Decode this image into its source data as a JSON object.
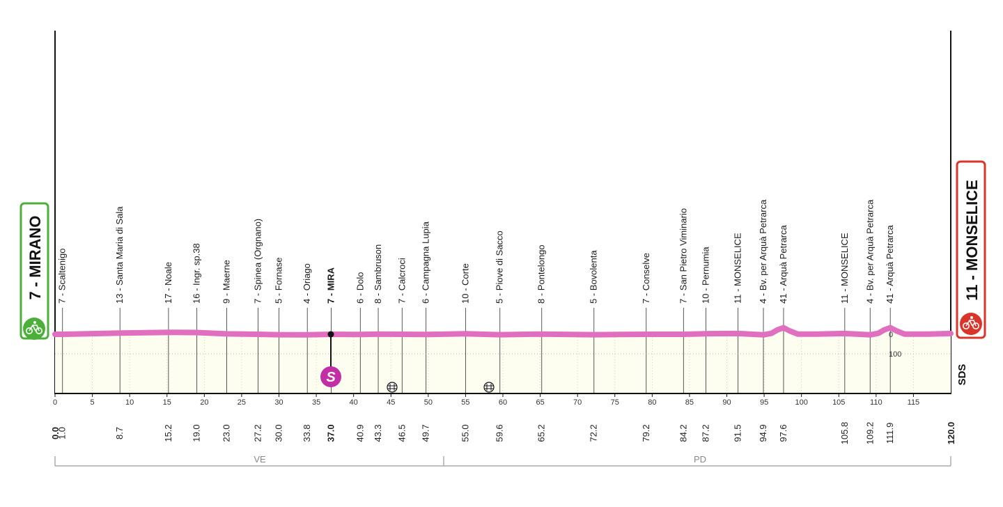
{
  "chart_data": {
    "type": "area",
    "title": "",
    "xlabel": "",
    "ylabel": "",
    "xlim": [
      0,
      120
    ],
    "ylim": [
      0,
      150
    ],
    "x_ticks": [
      0,
      5,
      10,
      15,
      20,
      25,
      30,
      35,
      40,
      45,
      50,
      55,
      60,
      65,
      70,
      75,
      80,
      85,
      90,
      95,
      100,
      105,
      110,
      115
    ],
    "y_ticks": [
      0,
      100
    ],
    "colors": {
      "profile_line": "#e06fc0",
      "area_fill": "#fdfdf0",
      "start": "#4caf3a",
      "finish": "#d9352b",
      "sprint": "#c12ea6"
    },
    "start": {
      "label": "7 - MIRANO",
      "km": "0.0",
      "icon": "bicycle-icon"
    },
    "finish": {
      "label": "11 - MONSELICE",
      "km": "120.0",
      "icon": "bicycle-icon"
    },
    "profile": [
      {
        "km": 0,
        "alt": 7
      },
      {
        "km": 1.0,
        "alt": 7
      },
      {
        "km": 8.7,
        "alt": 13
      },
      {
        "km": 15.2,
        "alt": 17
      },
      {
        "km": 19.0,
        "alt": 16
      },
      {
        "km": 23.0,
        "alt": 9
      },
      {
        "km": 27.2,
        "alt": 7
      },
      {
        "km": 30.0,
        "alt": 5
      },
      {
        "km": 33.8,
        "alt": 4
      },
      {
        "km": 37.0,
        "alt": 7
      },
      {
        "km": 40.9,
        "alt": 6
      },
      {
        "km": 43.3,
        "alt": 8
      },
      {
        "km": 46.5,
        "alt": 7
      },
      {
        "km": 49.7,
        "alt": 6
      },
      {
        "km": 55.0,
        "alt": 10
      },
      {
        "km": 59.6,
        "alt": 5
      },
      {
        "km": 65.2,
        "alt": 8
      },
      {
        "km": 72.2,
        "alt": 5
      },
      {
        "km": 79.2,
        "alt": 7
      },
      {
        "km": 84.2,
        "alt": 7
      },
      {
        "km": 87.2,
        "alt": 10
      },
      {
        "km": 91.5,
        "alt": 11
      },
      {
        "km": 94.9,
        "alt": 4
      },
      {
        "km": 96.0,
        "alt": 12
      },
      {
        "km": 96.8,
        "alt": 30
      },
      {
        "km": 97.6,
        "alt": 41
      },
      {
        "km": 98.4,
        "alt": 25
      },
      {
        "km": 99.5,
        "alt": 8
      },
      {
        "km": 102,
        "alt": 8
      },
      {
        "km": 105.8,
        "alt": 11
      },
      {
        "km": 109.2,
        "alt": 4
      },
      {
        "km": 110.3,
        "alt": 12
      },
      {
        "km": 111.1,
        "alt": 30
      },
      {
        "km": 111.9,
        "alt": 41
      },
      {
        "km": 112.7,
        "alt": 25
      },
      {
        "km": 113.8,
        "alt": 8
      },
      {
        "km": 117,
        "alt": 8
      },
      {
        "km": 120,
        "alt": 11
      }
    ],
    "waypoints": [
      {
        "km": 1.0,
        "km_label": "1.0",
        "name": "7 - Scaltenigo"
      },
      {
        "km": 8.7,
        "km_label": "8.7",
        "name": "13 - Santa Maria di Sala"
      },
      {
        "km": 15.2,
        "km_label": "15.2",
        "name": "17 - Noale"
      },
      {
        "km": 19.0,
        "km_label": "19.0",
        "name": "16 - Ingr. sp.38"
      },
      {
        "km": 23.0,
        "km_label": "23.0",
        "name": "9 - Maerne"
      },
      {
        "km": 27.2,
        "km_label": "27.2",
        "name": "7 - Spinea (Orgnano)"
      },
      {
        "km": 30.0,
        "km_label": "30.0",
        "name": "5 - Fornase"
      },
      {
        "km": 33.8,
        "km_label": "33.8",
        "name": "4 - Oriago"
      },
      {
        "km": 37.0,
        "km_label": "37.0",
        "name": "7 - MIRA",
        "bold": true
      },
      {
        "km": 40.9,
        "km_label": "40.9",
        "name": "6 - Dolo"
      },
      {
        "km": 43.3,
        "km_label": "43.3",
        "name": "8 - Sambruson"
      },
      {
        "km": 46.5,
        "km_label": "46.5",
        "name": "7 - Calcroci"
      },
      {
        "km": 49.7,
        "km_label": "49.7",
        "name": "6 - Campagna Lupia"
      },
      {
        "km": 55.0,
        "km_label": "55.0",
        "name": "10 - Corte"
      },
      {
        "km": 59.6,
        "km_label": "59.6",
        "name": "5 - Piove di Sacco"
      },
      {
        "km": 65.2,
        "km_label": "65.2",
        "name": "8 - Pontelongo"
      },
      {
        "km": 72.2,
        "km_label": "72.2",
        "name": "5 - Bovolenta"
      },
      {
        "km": 79.2,
        "km_label": "79.2",
        "name": "7 - Conselve"
      },
      {
        "km": 84.2,
        "km_label": "84.2",
        "name": "7 - San Pietro Viminario"
      },
      {
        "km": 87.2,
        "km_label": "87.2",
        "name": "10 - Pernumia"
      },
      {
        "km": 91.5,
        "km_label": "91.5",
        "name": "11 - MONSELICE"
      },
      {
        "km": 94.9,
        "km_label": "94.9",
        "name": "4 - Bv. per Arquà  Petrarca"
      },
      {
        "km": 97.6,
        "km_label": "97.6",
        "name": "41 - Arquà Petrarca"
      },
      {
        "km": 105.8,
        "km_label": "105.8",
        "name": "11 - MONSELICE"
      },
      {
        "km": 109.2,
        "km_label": "109.2",
        "name": "4 - Bv. per Arquà  Petrarca"
      },
      {
        "km": 111.9,
        "km_label": "111.9",
        "name": "41 - Arquà Petrarca"
      }
    ],
    "sprint": {
      "km": 37.0,
      "symbol": "S"
    },
    "level_crossings": [
      {
        "km": 44.8
      },
      {
        "km": 57.9
      }
    ],
    "alt_marks": [
      "0",
      "100"
    ],
    "provinces": [
      {
        "name": "VE",
        "from_km": 0,
        "to_km": 52
      },
      {
        "name": "PD",
        "from_km": 52,
        "to_km": 120
      }
    ],
    "brand_mark": "SDS"
  }
}
